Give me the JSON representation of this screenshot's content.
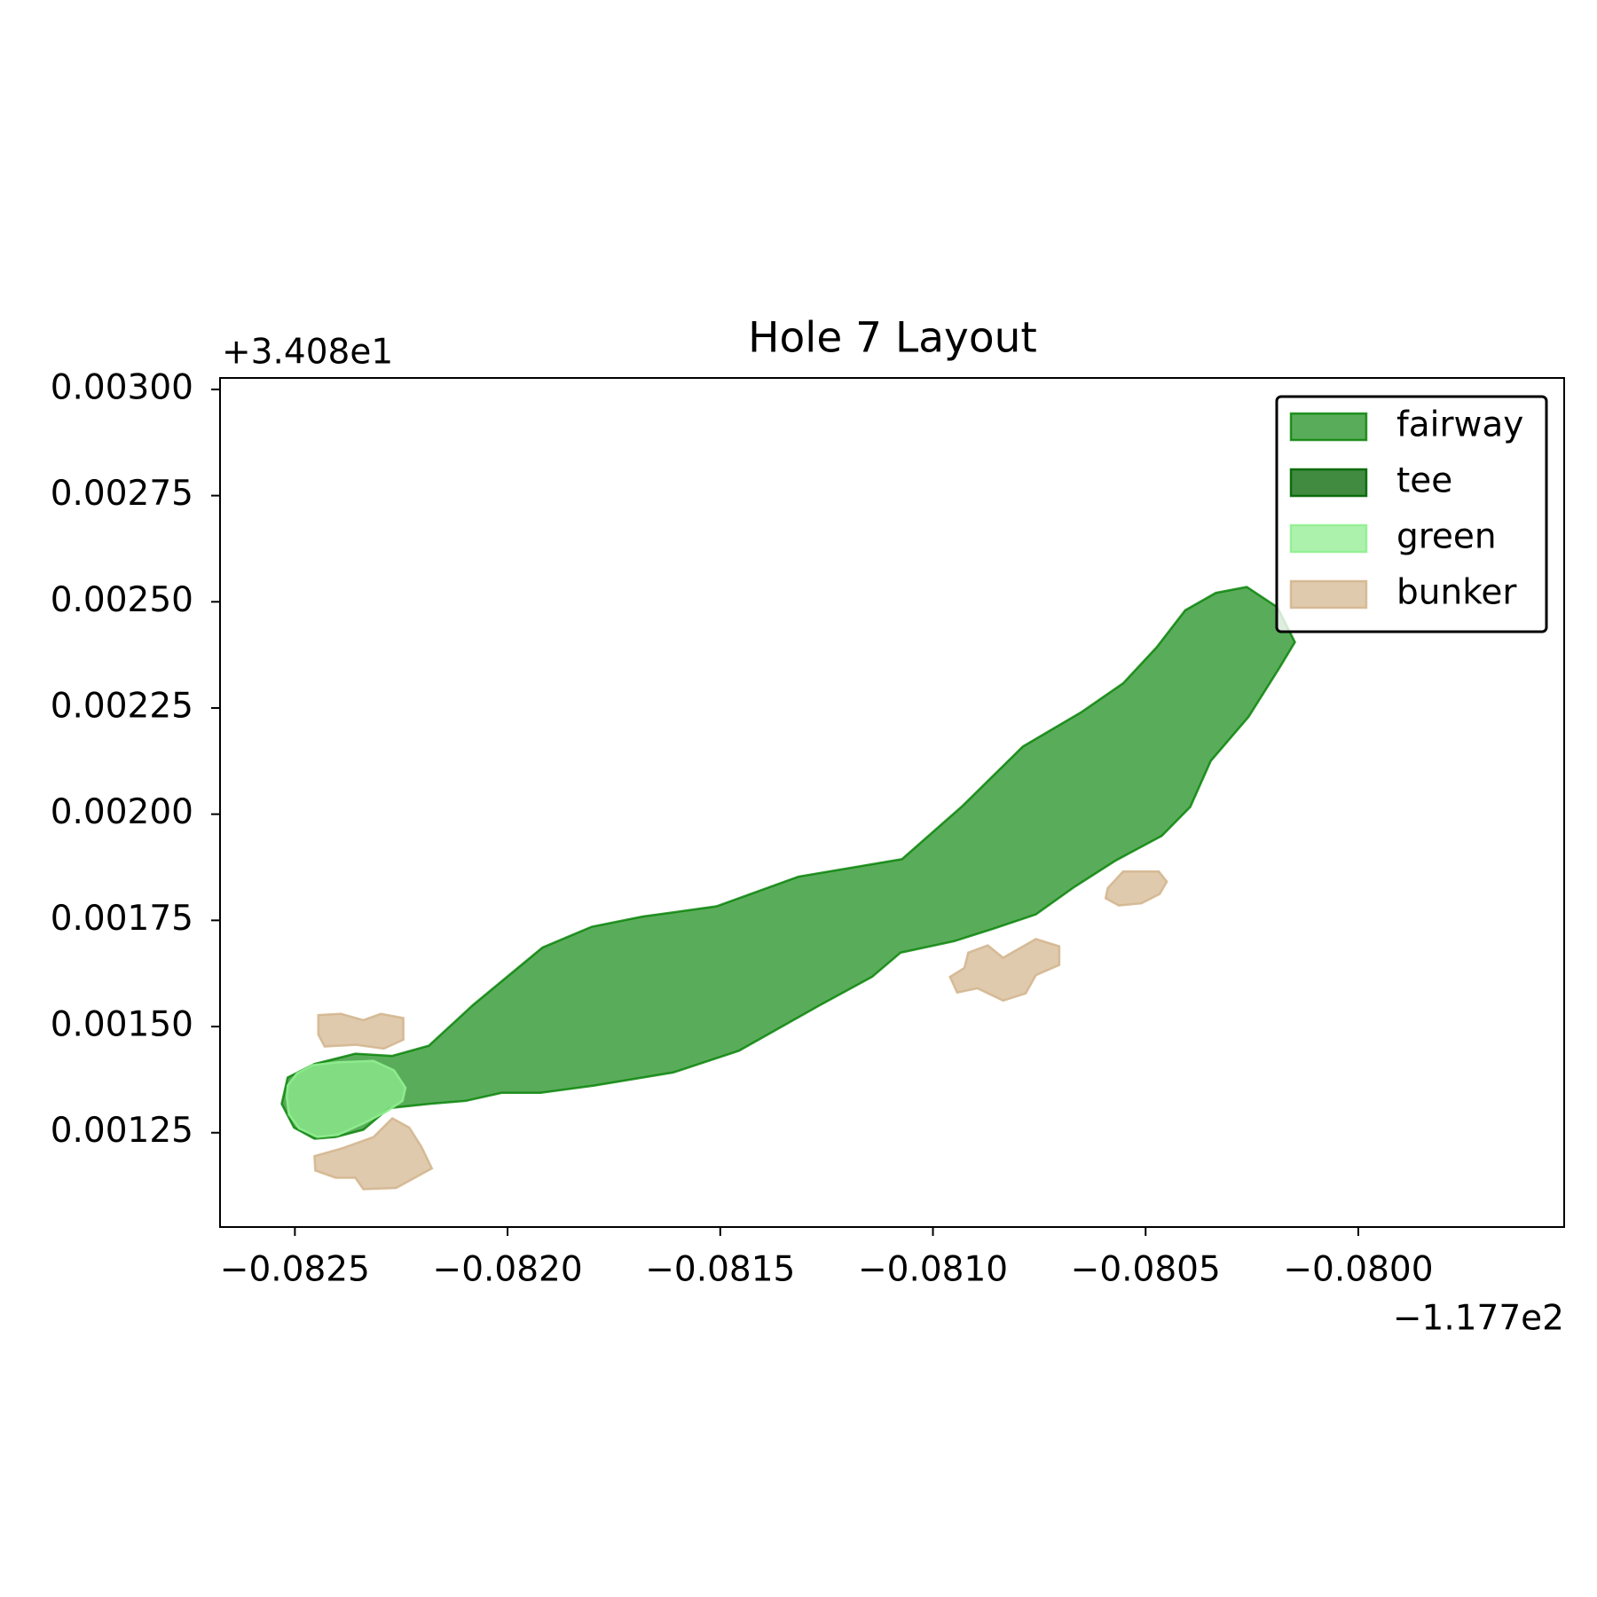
{
  "chart_data": {
    "type": "polygon",
    "title": "Hole 7 Layout",
    "x_offset_label": "−1.177e2",
    "y_offset_label": "+3.408e1",
    "xlim": [
      -0.082676,
      -0.079516
    ],
    "ylim": [
      0.001028,
      0.003027
    ],
    "xticks": [
      {
        "value": -0.0825,
        "label": "−0.0825"
      },
      {
        "value": -0.082,
        "label": "−0.0820"
      },
      {
        "value": -0.0815,
        "label": "−0.0815"
      },
      {
        "value": -0.081,
        "label": "−0.0810"
      },
      {
        "value": -0.0805,
        "label": "−0.0805"
      },
      {
        "value": -0.08,
        "label": "−0.0800"
      }
    ],
    "yticks": [
      {
        "value": 0.00125,
        "label": "0.00125"
      },
      {
        "value": 0.0015,
        "label": "0.00150"
      },
      {
        "value": 0.00175,
        "label": "0.00175"
      },
      {
        "value": 0.002,
        "label": "0.00200"
      },
      {
        "value": 0.00225,
        "label": "0.00225"
      },
      {
        "value": 0.0025,
        "label": "0.00250"
      },
      {
        "value": 0.00275,
        "label": "0.00275"
      },
      {
        "value": 0.003,
        "label": "0.00300"
      }
    ],
    "legend": "upper right",
    "series": [
      {
        "name": "fairway",
        "color": "green",
        "alpha": 0.65,
        "polygons": [
          {
            "x": [
              -0.082517,
              -0.082454,
              -0.082358,
              -0.082271,
              -0.082185,
              -0.082081,
              -0.081918,
              -0.081802,
              -0.081682,
              -0.081509,
              -0.081316,
              -0.081073,
              -0.080931,
              -0.080789,
              -0.08065,
              -0.080553,
              -0.080474,
              -0.080407,
              -0.080335,
              -0.080262,
              -0.08019,
              -0.080149,
              -0.080185,
              -0.080258,
              -0.080347,
              -0.080395,
              -0.080462,
              -0.08057,
              -0.080667,
              -0.080758,
              -0.080859,
              -0.08095,
              -0.081076,
              -0.081143,
              -0.081268,
              -0.081456,
              -0.08161,
              -0.081797,
              -0.081923,
              -0.082014,
              -0.082098,
              -0.082182,
              -0.082279,
              -0.082339,
              -0.082404,
              -0.082454,
              -0.082502,
              -0.082531
            ],
            "y": [
              0.00138,
              0.001412,
              0.001436,
              0.001431,
              0.001455,
              0.001551,
              0.001686,
              0.001735,
              0.001759,
              0.001783,
              0.001853,
              0.001894,
              0.002019,
              0.002159,
              0.002241,
              0.002308,
              0.002393,
              0.00248,
              0.002521,
              0.002535,
              0.002487,
              0.002405,
              0.002345,
              0.002229,
              0.002125,
              0.002017,
              0.001949,
              0.001891,
              0.001829,
              0.001764,
              0.00173,
              0.001701,
              0.001674,
              0.001617,
              0.001549,
              0.001443,
              0.001392,
              0.001361,
              0.001344,
              0.001344,
              0.001325,
              0.001318,
              0.001308,
              0.001257,
              0.00124,
              0.001236,
              0.001262,
              0.001318
            ]
          }
        ]
      },
      {
        "name": "tee",
        "color": "darkgreen",
        "alpha": 0.75,
        "polygons": []
      },
      {
        "name": "green",
        "color": "lightgreen",
        "alpha": 0.75,
        "polygons": [
          {
            "x": [
              -0.082517,
              -0.082495,
              -0.082459,
              -0.082399,
              -0.082315,
              -0.082267,
              -0.08224,
              -0.082247,
              -0.082283,
              -0.082339,
              -0.082399,
              -0.082447,
              -0.08249,
              -0.082514,
              -0.082519
            ],
            "y": [
              0.001361,
              0.00139,
              0.001409,
              0.001416,
              0.001419,
              0.001397,
              0.001356,
              0.001325,
              0.001301,
              0.001272,
              0.001245,
              0.00124,
              0.00126,
              0.001293,
              0.001332
            ]
          }
        ]
      },
      {
        "name": "bunker",
        "color": "tan",
        "alpha": 0.7,
        "polygons": [
          {
            "x": [
              -0.082445,
              -0.082392,
              -0.082339,
              -0.082298,
              -0.082245,
              -0.082245,
              -0.082291,
              -0.082356,
              -0.08243,
              -0.082445
            ],
            "y": [
              0.001527,
              0.00153,
              0.001515,
              0.00153,
              0.00152,
              0.001469,
              0.001448,
              0.001457,
              0.001453,
              0.001481
            ]
          },
          {
            "x": [
              -0.082454,
              -0.082387,
              -0.082315,
              -0.082271,
              -0.082231,
              -0.082202,
              -0.082178,
              -0.082262,
              -0.082339,
              -0.082358,
              -0.082404,
              -0.082452
            ],
            "y": [
              0.001195,
              0.001214,
              0.00124,
              0.001284,
              0.001262,
              0.001216,
              0.001166,
              0.00112,
              0.001117,
              0.001144,
              0.001144,
              0.001161
            ]
          },
          {
            "x": [
              -0.08096,
              -0.080926,
              -0.080917,
              -0.080871,
              -0.080835,
              -0.080758,
              -0.080703,
              -0.080703,
              -0.080758,
              -0.080782,
              -0.080835,
              -0.080895,
              -0.080943
            ],
            "y": [
              0.001617,
              0.001638,
              0.001674,
              0.001691,
              0.001662,
              0.001706,
              0.001689,
              0.001645,
              0.001621,
              0.001578,
              0.001561,
              0.00159,
              0.00158
            ]
          },
          {
            "x": [
              -0.080589,
              -0.080553,
              -0.080469,
              -0.08045,
              -0.080467,
              -0.08051,
              -0.080563,
              -0.080594
            ],
            "y": [
              0.001826,
              0.001865,
              0.001865,
              0.001841,
              0.001812,
              0.00179,
              0.001785,
              0.001802
            ]
          }
        ]
      }
    ]
  }
}
